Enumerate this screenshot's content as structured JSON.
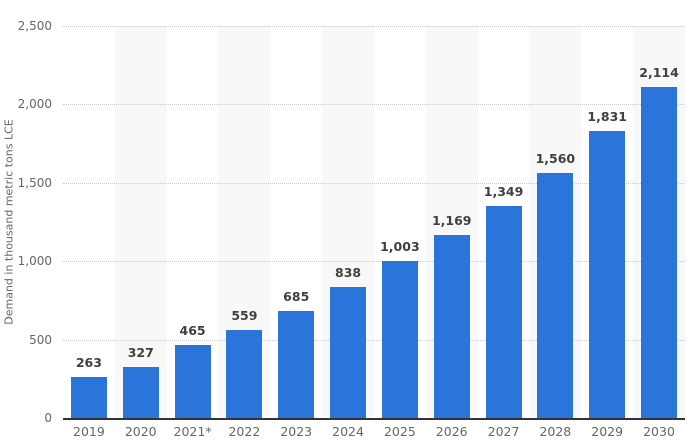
{
  "chart_data": {
    "type": "bar",
    "title": "",
    "xlabel": "",
    "ylabel": "Demand in thousand metric tons LCE",
    "categories": [
      "2019",
      "2020",
      "2021*",
      "2022",
      "2023",
      "2024",
      "2025",
      "2026",
      "2027",
      "2028",
      "2029",
      "2030"
    ],
    "values": [
      263,
      327,
      465,
      559,
      685,
      838,
      1003,
      1169,
      1349,
      1560,
      1831,
      2114
    ],
    "value_labels": [
      "263",
      "327",
      "465",
      "559",
      "685",
      "838",
      "1,003",
      "1,169",
      "1,349",
      "1,560",
      "1,831",
      "2,114"
    ],
    "ylim": [
      0,
      2500
    ],
    "y_ticks": [
      {
        "value": 0,
        "label": "0"
      },
      {
        "value": 500,
        "label": "500"
      },
      {
        "value": 1000,
        "label": "1,000"
      },
      {
        "value": 1500,
        "label": "1,500"
      },
      {
        "value": 2000,
        "label": "2,000"
      },
      {
        "value": 2500,
        "label": "2,500"
      }
    ],
    "grid": "horizontal-dotted",
    "legend": "none",
    "background_stripes": "alternating-columns",
    "colors": {
      "bar": "#2a74da",
      "value_label": "#404040",
      "axis_text": "#666666",
      "gridline": "#c9c9c9",
      "stripe": "#f8f8f8",
      "baseline": "#333333",
      "background": "#ffffff"
    }
  }
}
